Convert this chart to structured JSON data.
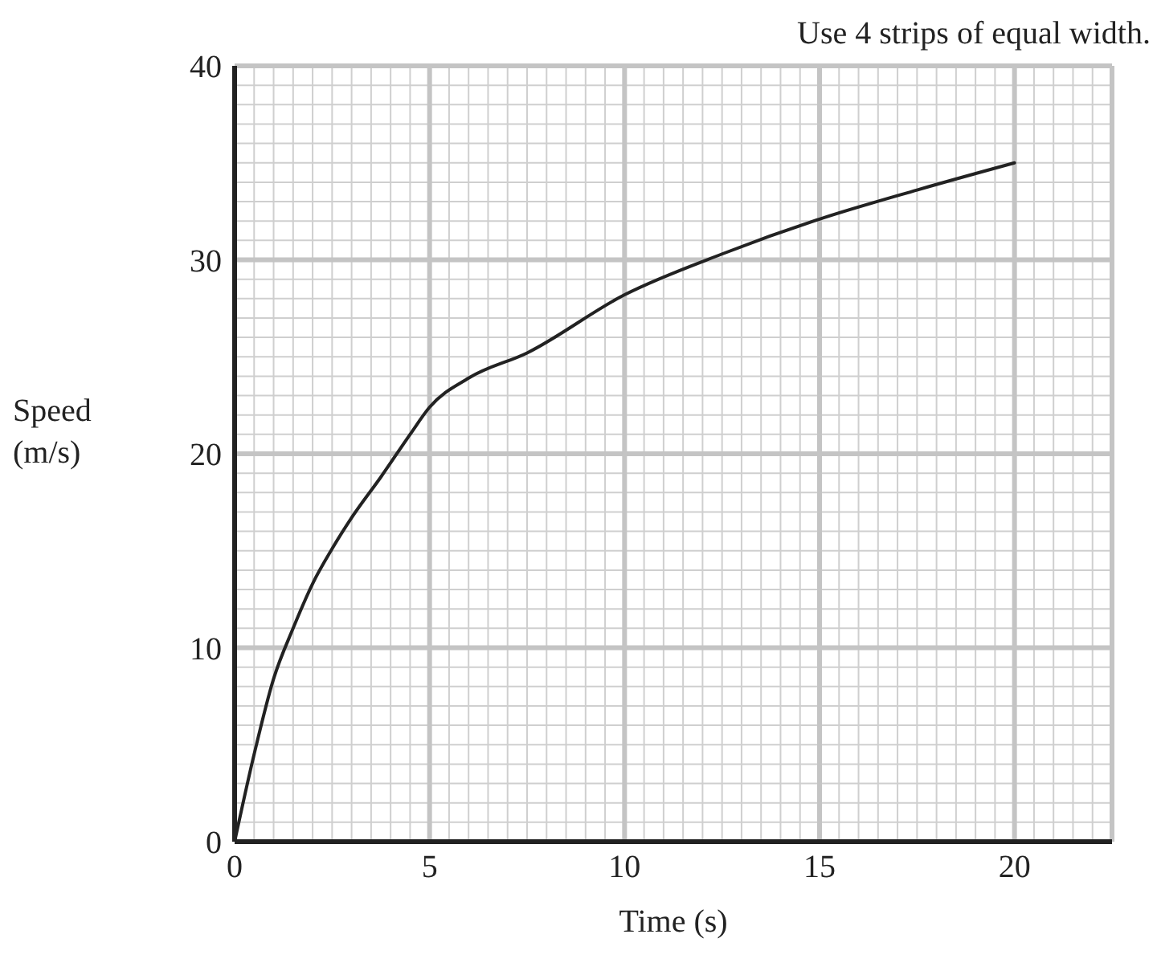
{
  "chart_data": {
    "type": "line",
    "xlabel": "Time (s)",
    "ylabel": "Speed (m/s)",
    "annotations": [
      "Use 4 strips of equal width."
    ],
    "x": [
      0,
      0.5,
      1,
      1.5,
      2,
      2.5,
      3,
      3.75,
      4.5,
      5,
      6,
      7.5,
      10,
      12.5,
      15,
      17.5,
      20
    ],
    "series": [
      {
        "color": "#222222",
        "values": [
          0,
          4.5,
          8.4,
          11,
          13.3,
          15.1,
          16.7,
          18.8,
          21,
          22.4,
          23.9,
          25.2,
          28.2,
          30.3,
          32.1,
          33.6,
          35
        ]
      }
    ],
    "xlim": [
      0,
      22.5
    ],
    "ylim": [
      0,
      40
    ],
    "xticks": [
      0,
      5,
      10,
      15,
      20
    ],
    "yticks": [
      0,
      10,
      20,
      30,
      40
    ],
    "grid": true,
    "legend": false,
    "marker": "none",
    "line_style": "solid"
  }
}
